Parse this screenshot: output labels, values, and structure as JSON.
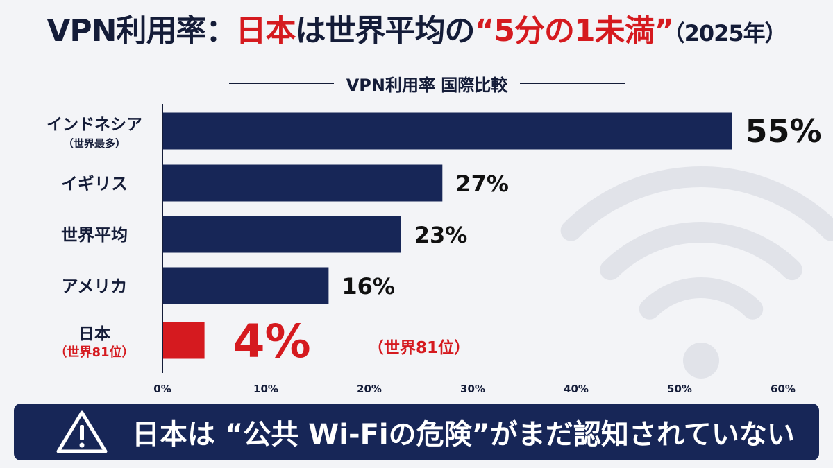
{
  "title": {
    "part1": "VPN利用率：",
    "part2": "日本",
    "part3": "は世界平均の",
    "part4": "“5分の1未満”",
    "part5": "（2025年）"
  },
  "subtitle": "VPN利用率 国際比較",
  "banner": {
    "icon": "warning-triangle-icon",
    "text": "日本は “公共 Wi-Fiの危険”がまだ認知されていない"
  },
  "colors": {
    "navy": "#172657",
    "red": "#d51a1f",
    "wifi_watermark": "#e1e3e9"
  },
  "chart_data": {
    "type": "bar",
    "orientation": "horizontal",
    "categories": [
      "インドネシア",
      "イギリス",
      "世界平均",
      "アメリカ",
      "日本"
    ],
    "category_notes": [
      "（世界最多）",
      "",
      "",
      "",
      "（世界81位）"
    ],
    "values": [
      55,
      27,
      23,
      16,
      4
    ],
    "value_labels": [
      "55%",
      "27%",
      "23%",
      "16%",
      "4%"
    ],
    "value_notes": [
      "",
      "",
      "",
      "",
      "（世界81位）"
    ],
    "highlight_index": 4,
    "xlim": [
      0,
      60
    ],
    "x_ticks": [
      0,
      10,
      20,
      30,
      40,
      50,
      60
    ],
    "x_tick_labels": [
      "0%",
      "10%",
      "20%",
      "30%",
      "40%",
      "50%",
      "60%"
    ],
    "grid": false
  }
}
